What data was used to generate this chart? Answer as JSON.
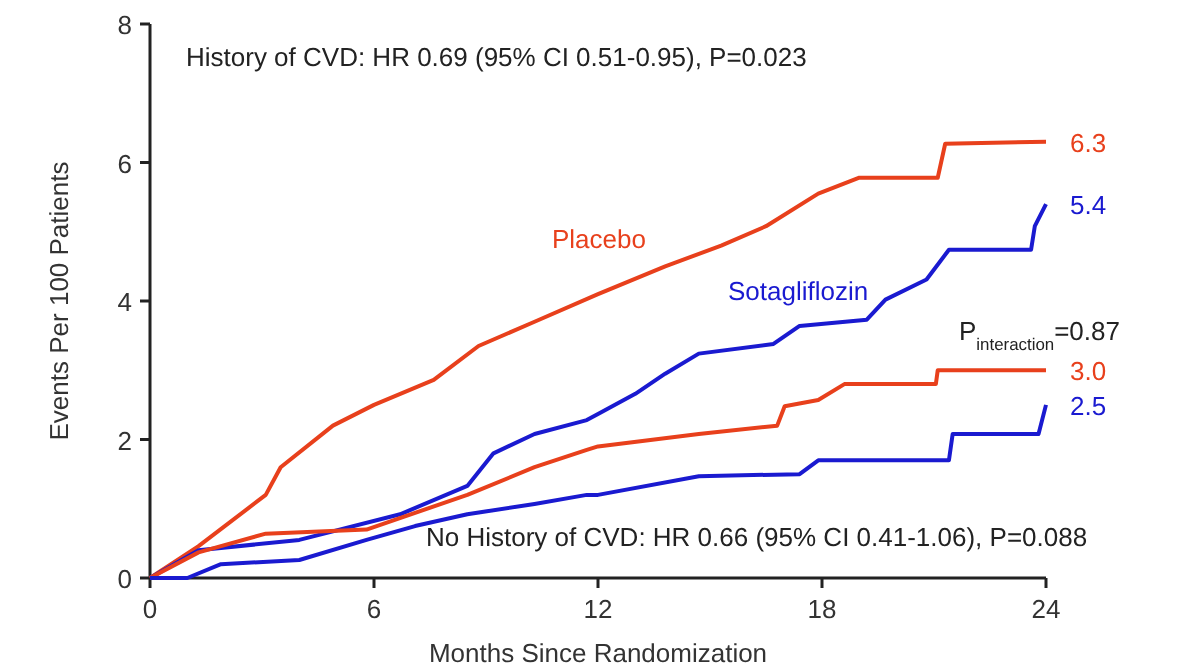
{
  "chart_data": {
    "type": "line",
    "xlabel": "Months Since Randomization",
    "ylabel": "Events Per 100 Patients",
    "xlim": [
      0,
      24
    ],
    "xticks": [
      0,
      6,
      12,
      18,
      24
    ],
    "ylim": [
      0,
      8
    ],
    "yticks": [
      0,
      2,
      4,
      6,
      8
    ],
    "grid": false,
    "annotations": [
      "History of CVD: HR 0.69 (95% CI 0.51-0.95), P=0.023",
      "No History of CVD: HR 0.66 (95% CI 0.41-1.06), P=0.088",
      "P$_{interaction}$=0.87"
    ],
    "series": [
      {
        "name": "Placebo",
        "color": "#e8401c",
        "x": [
          0,
          1.3,
          3.1,
          3.5,
          4.9,
          6,
          7.6,
          8.8,
          10.3,
          12,
          13.8,
          15.3,
          16.5,
          17.9,
          19,
          21.1,
          21.3,
          24
        ],
        "values": [
          0,
          0.46,
          1.2,
          1.6,
          2.2,
          2.5,
          2.86,
          3.35,
          3.7,
          4.1,
          4.5,
          4.8,
          5.08,
          5.55,
          5.78,
          5.78,
          6.27,
          6.3
        ],
        "value_labels": [
          null,
          null,
          null,
          null,
          null,
          null,
          null,
          null,
          null,
          null,
          null,
          null,
          null,
          null,
          null,
          null,
          null,
          "6.3"
        ]
      },
      {
        "name": "Sotagliflozin",
        "color": "#1a1ad0",
        "x": [
          0,
          1.3,
          4,
          6.7,
          8.5,
          9.2,
          10.3,
          11.7,
          12,
          13,
          13.8,
          14.7,
          16.7,
          17.4,
          19.2,
          19.7,
          20.8,
          21.4,
          23.6,
          23.7,
          24
        ],
        "values": [
          0,
          0.4,
          0.55,
          0.92,
          1.33,
          1.8,
          2.08,
          2.28,
          2.37,
          2.66,
          2.95,
          3.24,
          3.38,
          3.64,
          3.73,
          4.02,
          4.31,
          4.74,
          4.74,
          5.08,
          5.4
        ],
        "value_labels": [
          null,
          null,
          null,
          null,
          null,
          null,
          null,
          null,
          null,
          null,
          null,
          null,
          null,
          null,
          null,
          null,
          null,
          null,
          null,
          null,
          "5.4"
        ]
      },
      {
        "color": "#e8401c",
        "x": [
          0,
          1.3,
          3.1,
          5.8,
          8.5,
          10.3,
          11.7,
          12,
          14.7,
          16.8,
          17,
          17.9,
          18.6,
          21.05,
          21.1,
          24
        ],
        "values": [
          0,
          0.37,
          0.64,
          0.7,
          1.2,
          1.6,
          1.85,
          1.9,
          2.08,
          2.2,
          2.48,
          2.57,
          2.8,
          2.8,
          3,
          3
        ],
        "value_labels": [
          null,
          null,
          null,
          null,
          null,
          null,
          null,
          null,
          null,
          null,
          null,
          null,
          null,
          null,
          null,
          "3.0"
        ]
      },
      {
        "color": "#1a1ad0",
        "x": [
          0,
          1,
          1.9,
          4,
          5.8,
          7.1,
          8.5,
          10.3,
          11.7,
          12,
          14.7,
          17.4,
          17.9,
          21.4,
          21.5,
          23.8,
          24
        ],
        "values": [
          0,
          0,
          0.2,
          0.26,
          0.55,
          0.75,
          0.92,
          1.07,
          1.2,
          1.2,
          1.47,
          1.5,
          1.7,
          1.7,
          2.08,
          2.08,
          2.5
        ],
        "value_labels": [
          null,
          null,
          null,
          null,
          null,
          null,
          null,
          null,
          null,
          null,
          null,
          null,
          null,
          null,
          null,
          null,
          "2.5"
        ]
      }
    ]
  }
}
